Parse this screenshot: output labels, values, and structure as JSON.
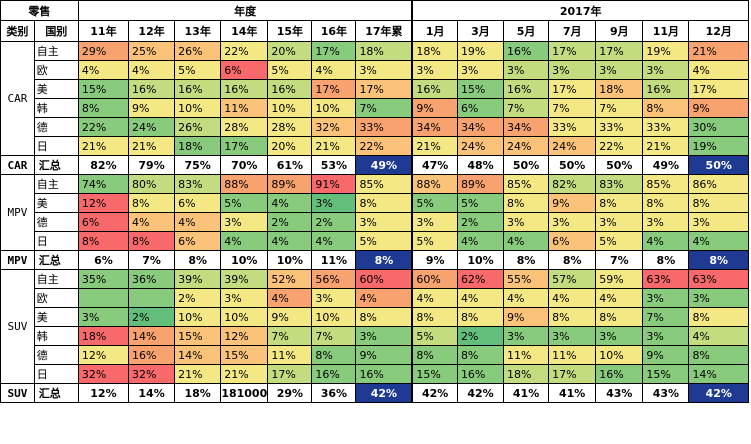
{
  "colors": {
    "lg": "#63be7b",
    "g": "#89cb7d",
    "yg": "#c3dc80",
    "y": "#f3e884",
    "o": "#fbc379",
    "lo": "#f8a36f",
    "r": "#f8696b",
    "w": "#ffffff",
    "nb": "#1f3a93"
  },
  "header": {
    "title": "零售",
    "group_year": "年度",
    "group_2017": "2017年",
    "col_category": "类别",
    "col_country": "国别",
    "periods": [
      "11年",
      "12年",
      "13年",
      "14年",
      "15年",
      "16年",
      "17年累",
      "1月",
      "3月",
      "5月",
      "7月",
      "9月",
      "11月",
      "12月"
    ]
  },
  "sections": [
    {
      "category": "CAR",
      "rows": [
        {
          "country": "自主",
          "cells": [
            [
              "29%",
              "lo"
            ],
            [
              "25%",
              "o"
            ],
            [
              "26%",
              "o"
            ],
            [
              "22%",
              "y"
            ],
            [
              "20%",
              "yg"
            ],
            [
              "17%",
              "g"
            ],
            [
              "18%",
              "yg"
            ],
            [
              "18%",
              "y"
            ],
            [
              "19%",
              "y"
            ],
            [
              "16%",
              "g"
            ],
            [
              "17%",
              "yg"
            ],
            [
              "17%",
              "yg"
            ],
            [
              "19%",
              "y"
            ],
            [
              "21%",
              "lo"
            ]
          ]
        },
        {
          "country": "欧",
          "cells": [
            [
              "4%",
              "y"
            ],
            [
              "4%",
              "y"
            ],
            [
              "5%",
              "y"
            ],
            [
              "6%",
              "r"
            ],
            [
              "5%",
              "y"
            ],
            [
              "4%",
              "y"
            ],
            [
              "3%",
              "y"
            ],
            [
              "3%",
              "y"
            ],
            [
              "3%",
              "y"
            ],
            [
              "3%",
              "yg"
            ],
            [
              "3%",
              "yg"
            ],
            [
              "3%",
              "yg"
            ],
            [
              "3%",
              "yg"
            ],
            [
              "4%",
              "y"
            ]
          ]
        },
        {
          "country": "美",
          "cells": [
            [
              "15%",
              "g"
            ],
            [
              "16%",
              "yg"
            ],
            [
              "16%",
              "yg"
            ],
            [
              "16%",
              "yg"
            ],
            [
              "16%",
              "yg"
            ],
            [
              "17%",
              "lo"
            ],
            [
              "17%",
              "o"
            ],
            [
              "16%",
              "yg"
            ],
            [
              "15%",
              "g"
            ],
            [
              "16%",
              "yg"
            ],
            [
              "17%",
              "y"
            ],
            [
              "18%",
              "o"
            ],
            [
              "16%",
              "yg"
            ],
            [
              "17%",
              "y"
            ]
          ]
        },
        {
          "country": "韩",
          "cells": [
            [
              "8%",
              "g"
            ],
            [
              "9%",
              "y"
            ],
            [
              "10%",
              "y"
            ],
            [
              "11%",
              "o"
            ],
            [
              "10%",
              "y"
            ],
            [
              "10%",
              "y"
            ],
            [
              "7%",
              "g"
            ],
            [
              "9%",
              "lo"
            ],
            [
              "6%",
              "g"
            ],
            [
              "7%",
              "yg"
            ],
            [
              "7%",
              "y"
            ],
            [
              "7%",
              "y"
            ],
            [
              "8%",
              "o"
            ],
            [
              "9%",
              "lo"
            ]
          ]
        },
        {
          "country": "德",
          "cells": [
            [
              "22%",
              "g"
            ],
            [
              "24%",
              "g"
            ],
            [
              "26%",
              "yg"
            ],
            [
              "28%",
              "y"
            ],
            [
              "28%",
              "y"
            ],
            [
              "32%",
              "o"
            ],
            [
              "33%",
              "lo"
            ],
            [
              "34%",
              "lo"
            ],
            [
              "34%",
              "lo"
            ],
            [
              "34%",
              "lo"
            ],
            [
              "33%",
              "y"
            ],
            [
              "33%",
              "y"
            ],
            [
              "33%",
              "y"
            ],
            [
              "30%",
              "g"
            ]
          ]
        },
        {
          "country": "日",
          "cells": [
            [
              "21%",
              "y"
            ],
            [
              "21%",
              "y"
            ],
            [
              "18%",
              "g"
            ],
            [
              "17%",
              "g"
            ],
            [
              "20%",
              "y"
            ],
            [
              "21%",
              "y"
            ],
            [
              "22%",
              "o"
            ],
            [
              "21%",
              "y"
            ],
            [
              "24%",
              "o"
            ],
            [
              "24%",
              "o"
            ],
            [
              "24%",
              "o"
            ],
            [
              "22%",
              "y"
            ],
            [
              "21%",
              "y"
            ],
            [
              "19%",
              "g"
            ]
          ]
        }
      ],
      "summary": {
        "label": "汇总",
        "cells": [
          [
            "82%",
            "w"
          ],
          [
            "79%",
            "w"
          ],
          [
            "75%",
            "w"
          ],
          [
            "70%",
            "w"
          ],
          [
            "61%",
            "w"
          ],
          [
            "53%",
            "w"
          ],
          [
            "49%",
            "nb"
          ],
          [
            "47%",
            "w"
          ],
          [
            "48%",
            "w"
          ],
          [
            "50%",
            "w"
          ],
          [
            "50%",
            "w"
          ],
          [
            "50%",
            "w"
          ],
          [
            "49%",
            "w"
          ],
          [
            "50%",
            "nb"
          ]
        ]
      }
    },
    {
      "category": "MPV",
      "rows": [
        {
          "country": "自主",
          "cells": [
            [
              "74%",
              "g"
            ],
            [
              "80%",
              "yg"
            ],
            [
              "83%",
              "yg"
            ],
            [
              "88%",
              "lo"
            ],
            [
              "89%",
              "lo"
            ],
            [
              "91%",
              "r"
            ],
            [
              "85%",
              "y"
            ],
            [
              "88%",
              "o"
            ],
            [
              "89%",
              "lo"
            ],
            [
              "85%",
              "y"
            ],
            [
              "82%",
              "yg"
            ],
            [
              "83%",
              "yg"
            ],
            [
              "85%",
              "y"
            ],
            [
              "86%",
              "y"
            ]
          ]
        },
        {
          "country": "美",
          "cells": [
            [
              "12%",
              "r"
            ],
            [
              "8%",
              "y"
            ],
            [
              "6%",
              "y"
            ],
            [
              "5%",
              "g"
            ],
            [
              "4%",
              "g"
            ],
            [
              "3%",
              "lg"
            ],
            [
              "8%",
              "y"
            ],
            [
              "5%",
              "g"
            ],
            [
              "5%",
              "g"
            ],
            [
              "8%",
              "y"
            ],
            [
              "9%",
              "o"
            ],
            [
              "8%",
              "y"
            ],
            [
              "8%",
              "y"
            ],
            [
              "8%",
              "y"
            ]
          ]
        },
        {
          "country": "德",
          "cells": [
            [
              "6%",
              "r"
            ],
            [
              "4%",
              "o"
            ],
            [
              "4%",
              "o"
            ],
            [
              "3%",
              "y"
            ],
            [
              "2%",
              "g"
            ],
            [
              "2%",
              "g"
            ],
            [
              "3%",
              "y"
            ],
            [
              "3%",
              "y"
            ],
            [
              "2%",
              "g"
            ],
            [
              "3%",
              "y"
            ],
            [
              "3%",
              "y"
            ],
            [
              "3%",
              "y"
            ],
            [
              "3%",
              "y"
            ],
            [
              "3%",
              "y"
            ]
          ]
        },
        {
          "country": "日",
          "cells": [
            [
              "8%",
              "r"
            ],
            [
              "8%",
              "r"
            ],
            [
              "6%",
              "o"
            ],
            [
              "4%",
              "g"
            ],
            [
              "4%",
              "g"
            ],
            [
              "4%",
              "g"
            ],
            [
              "5%",
              "y"
            ],
            [
              "5%",
              "y"
            ],
            [
              "4%",
              "g"
            ],
            [
              "4%",
              "g"
            ],
            [
              "6%",
              "o"
            ],
            [
              "5%",
              "y"
            ],
            [
              "4%",
              "g"
            ],
            [
              "4%",
              "g"
            ]
          ]
        }
      ],
      "summary": {
        "label": "汇总",
        "cells": [
          [
            "6%",
            "w"
          ],
          [
            "7%",
            "w"
          ],
          [
            "8%",
            "w"
          ],
          [
            "10%",
            "w"
          ],
          [
            "10%",
            "w"
          ],
          [
            "11%",
            "w"
          ],
          [
            "8%",
            "nb"
          ],
          [
            "9%",
            "w"
          ],
          [
            "10%",
            "w"
          ],
          [
            "8%",
            "w"
          ],
          [
            "8%",
            "w"
          ],
          [
            "7%",
            "w"
          ],
          [
            "8%",
            "w"
          ],
          [
            "8%",
            "nb"
          ]
        ]
      }
    },
    {
      "category": "SUV",
      "rows": [
        {
          "country": "自主",
          "cells": [
            [
              "35%",
              "g"
            ],
            [
              "36%",
              "g"
            ],
            [
              "39%",
              "yg"
            ],
            [
              "39%",
              "yg"
            ],
            [
              "52%",
              "o"
            ],
            [
              "56%",
              "lo"
            ],
            [
              "60%",
              "r"
            ],
            [
              "60%",
              "lo"
            ],
            [
              "62%",
              "r"
            ],
            [
              "55%",
              "o"
            ],
            [
              "57%",
              "yg"
            ],
            [
              "59%",
              "y"
            ],
            [
              "63%",
              "r"
            ],
            [
              "63%",
              "r"
            ]
          ]
        },
        {
          "country": "欧",
          "cells": [
            [
              "",
              "g"
            ],
            [
              "",
              "g"
            ],
            [
              "2%",
              "y"
            ],
            [
              "3%",
              "y"
            ],
            [
              "4%",
              "lo"
            ],
            [
              "3%",
              "y"
            ],
            [
              "4%",
              "lo"
            ],
            [
              "4%",
              "y"
            ],
            [
              "4%",
              "y"
            ],
            [
              "4%",
              "y"
            ],
            [
              "4%",
              "y"
            ],
            [
              "4%",
              "y"
            ],
            [
              "3%",
              "g"
            ],
            [
              "3%",
              "g"
            ]
          ]
        },
        {
          "country": "美",
          "cells": [
            [
              "3%",
              "g"
            ],
            [
              "2%",
              "lg"
            ],
            [
              "10%",
              "y"
            ],
            [
              "10%",
              "y"
            ],
            [
              "9%",
              "y"
            ],
            [
              "10%",
              "y"
            ],
            [
              "8%",
              "y"
            ],
            [
              "8%",
              "y"
            ],
            [
              "8%",
              "y"
            ],
            [
              "9%",
              "o"
            ],
            [
              "8%",
              "y"
            ],
            [
              "8%",
              "y"
            ],
            [
              "7%",
              "g"
            ],
            [
              "8%",
              "y"
            ]
          ]
        },
        {
          "country": "韩",
          "cells": [
            [
              "18%",
              "r"
            ],
            [
              "14%",
              "lo"
            ],
            [
              "15%",
              "o"
            ],
            [
              "12%",
              "o"
            ],
            [
              "7%",
              "yg"
            ],
            [
              "7%",
              "yg"
            ],
            [
              "3%",
              "g"
            ],
            [
              "5%",
              "yg"
            ],
            [
              "2%",
              "lg"
            ],
            [
              "3%",
              "g"
            ],
            [
              "3%",
              "g"
            ],
            [
              "3%",
              "g"
            ],
            [
              "3%",
              "g"
            ],
            [
              "4%",
              "yg"
            ]
          ]
        },
        {
          "country": "德",
          "cells": [
            [
              "12%",
              "y"
            ],
            [
              "16%",
              "lo"
            ],
            [
              "14%",
              "o"
            ],
            [
              "15%",
              "o"
            ],
            [
              "11%",
              "y"
            ],
            [
              "8%",
              "g"
            ],
            [
              "9%",
              "g"
            ],
            [
              "8%",
              "g"
            ],
            [
              "8%",
              "g"
            ],
            [
              "11%",
              "y"
            ],
            [
              "11%",
              "y"
            ],
            [
              "10%",
              "y"
            ],
            [
              "9%",
              "g"
            ],
            [
              "8%",
              "g"
            ]
          ]
        },
        {
          "country": "日",
          "cells": [
            [
              "32%",
              "r"
            ],
            [
              "32%",
              "r"
            ],
            [
              "21%",
              "y"
            ],
            [
              "21%",
              "y"
            ],
            [
              "17%",
              "yg"
            ],
            [
              "16%",
              "g"
            ],
            [
              "16%",
              "g"
            ],
            [
              "15%",
              "g"
            ],
            [
              "16%",
              "g"
            ],
            [
              "18%",
              "yg"
            ],
            [
              "17%",
              "yg"
            ],
            [
              "16%",
              "g"
            ],
            [
              "15%",
              "g"
            ],
            [
              "14%",
              "g"
            ]
          ]
        }
      ],
      "summary": {
        "label": "汇总",
        "cells": [
          [
            "12%",
            "w"
          ],
          [
            "14%",
            "w"
          ],
          [
            "18%",
            "w"
          ],
          [
            "181000",
            "w"
          ],
          [
            "29%",
            "w"
          ],
          [
            "36%",
            "w"
          ],
          [
            "42%",
            "nb"
          ],
          [
            "42%",
            "w"
          ],
          [
            "42%",
            "w"
          ],
          [
            "41%",
            "w"
          ],
          [
            "41%",
            "w"
          ],
          [
            "43%",
            "w"
          ],
          [
            "43%",
            "w"
          ],
          [
            "42%",
            "nb"
          ]
        ]
      }
    }
  ]
}
